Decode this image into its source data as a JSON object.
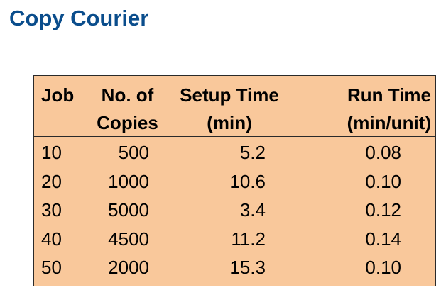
{
  "title": "Copy Courier",
  "table": {
    "headers": [
      [
        "Job",
        "No. of",
        "Setup Time",
        "Run Time"
      ],
      [
        "",
        "Copies",
        "(min)",
        "(min/unit)"
      ]
    ],
    "rows": [
      [
        "10",
        "500",
        "5.2",
        "0.08"
      ],
      [
        "20",
        "1000",
        "10.6",
        "0.10"
      ],
      [
        "30",
        "5000",
        "3.4",
        "0.12"
      ],
      [
        "40",
        "4500",
        "11.2",
        "0.14"
      ],
      [
        "50",
        "2000",
        "15.3",
        "0.10"
      ]
    ]
  },
  "colors": {
    "title": "#0a4d8c",
    "table_background": "#f9c89b",
    "border": "#2a2a2a"
  }
}
